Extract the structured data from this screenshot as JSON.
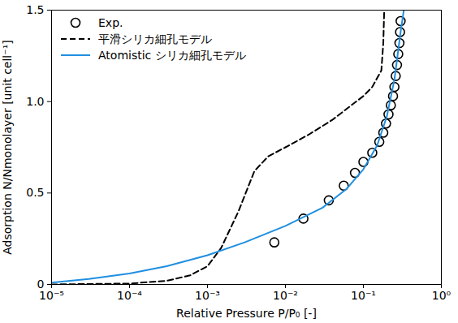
{
  "chart_data": {
    "type": "line",
    "x_label": "Relative Pressure P/P₀ [-]",
    "y_label": "Adsorption N/Nmonolayer [unit cell⁻¹]",
    "log": "x",
    "legend": "top-left",
    "xlim": [
      1e-05,
      1
    ],
    "ylim": [
      0,
      1.5
    ],
    "xticks": [
      {
        "value": 1e-05,
        "label": "10⁻⁵"
      },
      {
        "value": 0.0001,
        "label": "10⁻⁴"
      },
      {
        "value": 0.001,
        "label": "10⁻³"
      },
      {
        "value": 0.01,
        "label": "10⁻²"
      },
      {
        "value": 0.1,
        "label": "10⁻¹"
      },
      {
        "value": 1,
        "label": "10⁰"
      }
    ],
    "yticks": [
      0,
      0.5,
      {
        "value": 1,
        "label": "1.0"
      },
      1.5
    ],
    "series": [
      {
        "name": "Exp.",
        "type": "scatter",
        "marker": "circle",
        "color": "#000000",
        "x": [
          0.0072,
          0.017,
          0.036,
          0.056,
          0.078,
          0.1,
          0.13,
          0.16,
          0.18,
          0.195,
          0.21,
          0.225,
          0.24,
          0.25,
          0.26,
          0.27,
          0.28,
          0.29,
          0.295,
          0.3
        ],
        "values": [
          0.23,
          0.36,
          0.46,
          0.54,
          0.61,
          0.67,
          0.72,
          0.78,
          0.83,
          0.88,
          0.93,
          0.98,
          1.03,
          1.08,
          1.14,
          1.2,
          1.26,
          1.32,
          1.38,
          1.44
        ]
      },
      {
        "name": "平滑シリカ細孔モデル",
        "type": "line",
        "line_style": "dashed",
        "color": "#000000",
        "x": [
          1e-05,
          0.0001,
          0.0003,
          0.0006,
          0.001,
          0.0015,
          0.0025,
          0.004,
          0.006,
          0.01,
          0.02,
          0.04,
          0.07,
          0.1,
          0.13,
          0.16,
          0.17,
          0.18,
          0.185
        ],
        "values": [
          0.0,
          0.005,
          0.02,
          0.05,
          0.1,
          0.2,
          0.4,
          0.62,
          0.7,
          0.75,
          0.82,
          0.9,
          0.98,
          1.03,
          1.08,
          1.15,
          1.17,
          1.32,
          1.5
        ]
      },
      {
        "name": "Atomistic シリカ細孔モデル",
        "type": "line",
        "line_style": "solid",
        "color": "#1f8fe0",
        "x": [
          1e-05,
          3e-05,
          0.0001,
          0.0003,
          0.001,
          0.003,
          0.01,
          0.03,
          0.06,
          0.1,
          0.15,
          0.2,
          0.25,
          0.3,
          0.33
        ],
        "values": [
          0.01,
          0.03,
          0.06,
          0.1,
          0.16,
          0.23,
          0.32,
          0.42,
          0.52,
          0.63,
          0.76,
          0.92,
          1.12,
          1.38,
          1.5
        ]
      }
    ]
  }
}
